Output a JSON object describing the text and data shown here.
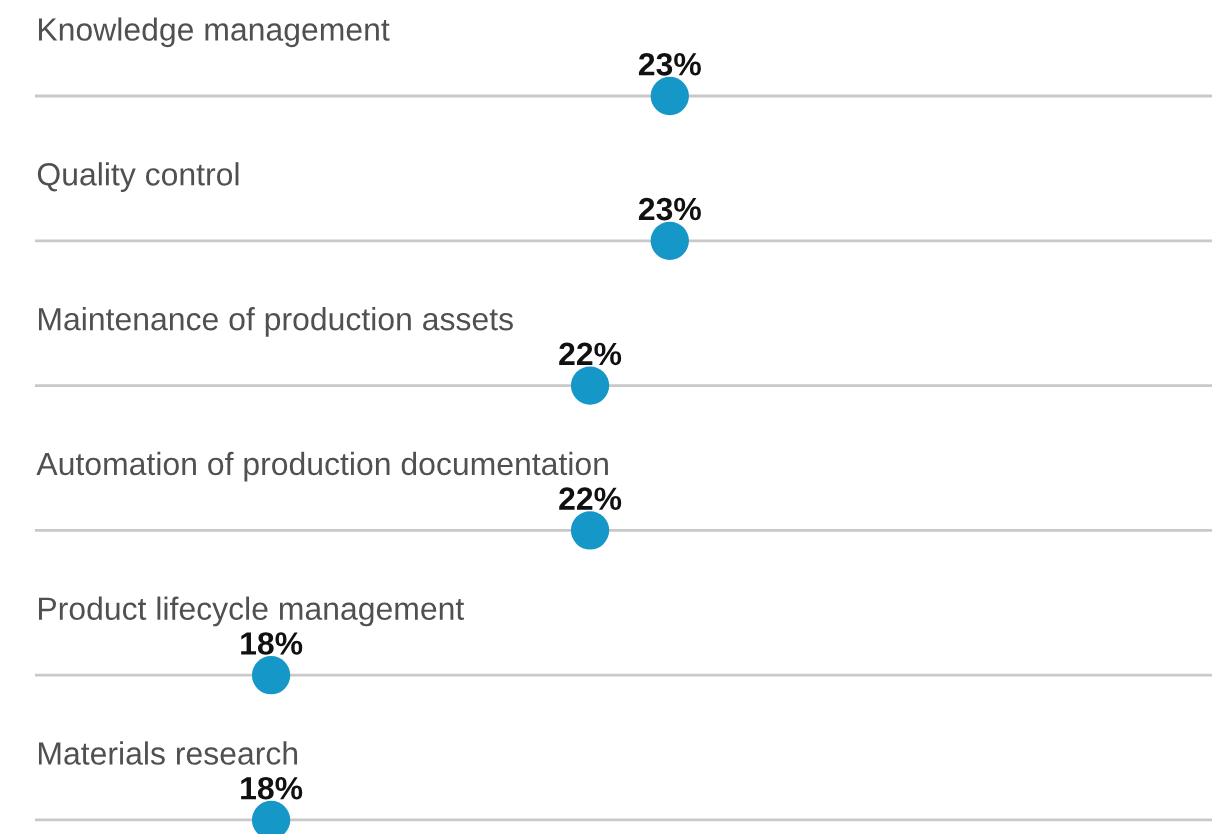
{
  "chart_data": {
    "type": "scatter",
    "orientation": "horizontal",
    "categories": [
      "Knowledge management",
      "Quality control",
      "Maintenance of production assets",
      "Automation of production documentation",
      "Product lifecycle management",
      "Materials research"
    ],
    "values": [
      23,
      23,
      22,
      22,
      18,
      18
    ],
    "color": "#1597c8",
    "data_labels": true,
    "value_labels": [
      "23%",
      "23%",
      "22%",
      "22%",
      "18%",
      "18%"
    ],
    "xlim": [
      14.6,
      29.8
    ],
    "tick_labels": false,
    "grid": "y",
    "marker": "circle",
    "legend": false
  }
}
